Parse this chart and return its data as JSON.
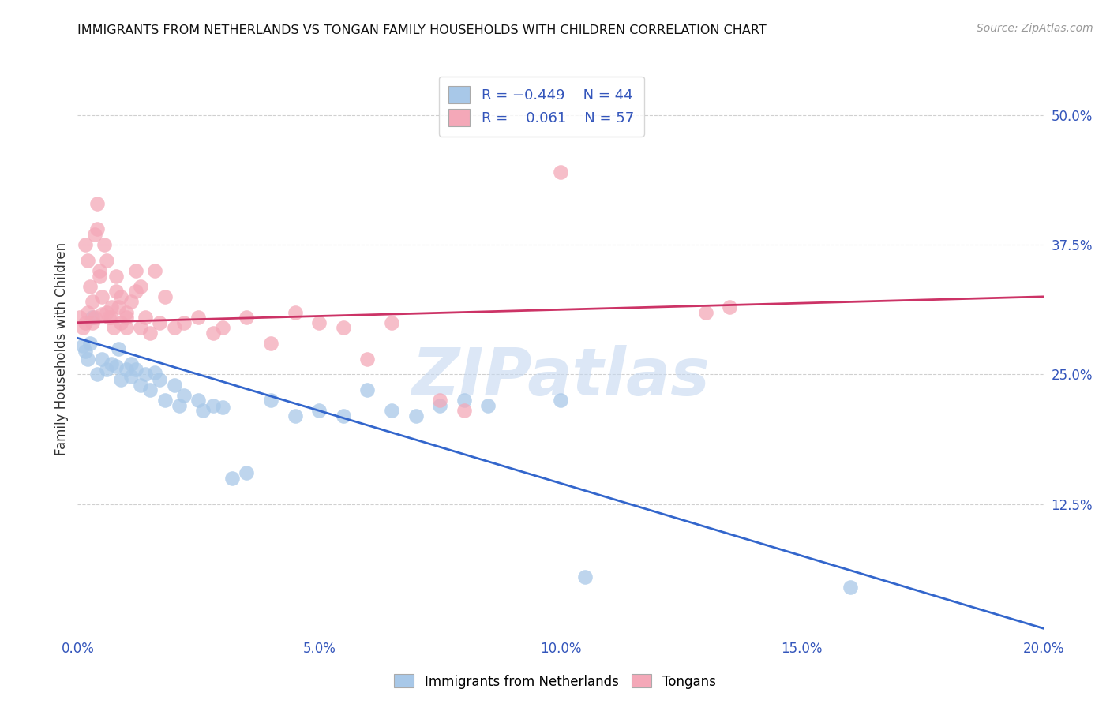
{
  "title": "IMMIGRANTS FROM NETHERLANDS VS TONGAN FAMILY HOUSEHOLDS WITH CHILDREN CORRELATION CHART",
  "source": "Source: ZipAtlas.com",
  "ylabel": "Family Households with Children",
  "x_tick_labels": [
    "0.0%",
    "5.0%",
    "10.0%",
    "15.0%",
    "20.0%"
  ],
  "x_tick_positions": [
    0.0,
    5.0,
    10.0,
    15.0,
    20.0
  ],
  "y_tick_labels": [
    "12.5%",
    "25.0%",
    "37.5%",
    "50.0%"
  ],
  "y_tick_positions": [
    12.5,
    25.0,
    37.5,
    50.0
  ],
  "xlim": [
    0.0,
    20.0
  ],
  "ylim": [
    0.0,
    55.0
  ],
  "blue_color": "#a8c8e8",
  "pink_color": "#f4a8b8",
  "blue_line_color": "#3366cc",
  "pink_line_color": "#cc3366",
  "blue_line_x0": 0.0,
  "blue_line_y0": 28.5,
  "blue_line_x1": 20.0,
  "blue_line_y1": 0.5,
  "pink_line_x0": 0.0,
  "pink_line_y0": 30.0,
  "pink_line_x1": 20.0,
  "pink_line_y1": 32.5,
  "blue_scatter": [
    [
      0.1,
      27.8
    ],
    [
      0.15,
      27.2
    ],
    [
      0.2,
      26.5
    ],
    [
      0.25,
      28.0
    ],
    [
      0.3,
      30.5
    ],
    [
      0.4,
      25.0
    ],
    [
      0.5,
      26.5
    ],
    [
      0.6,
      25.5
    ],
    [
      0.7,
      26.0
    ],
    [
      0.8,
      25.8
    ],
    [
      0.85,
      27.5
    ],
    [
      0.9,
      24.5
    ],
    [
      1.0,
      25.5
    ],
    [
      1.1,
      26.0
    ],
    [
      1.1,
      24.8
    ],
    [
      1.2,
      25.5
    ],
    [
      1.3,
      24.0
    ],
    [
      1.4,
      25.0
    ],
    [
      1.5,
      23.5
    ],
    [
      1.6,
      25.2
    ],
    [
      1.7,
      24.5
    ],
    [
      1.8,
      22.5
    ],
    [
      2.0,
      24.0
    ],
    [
      2.1,
      22.0
    ],
    [
      2.2,
      23.0
    ],
    [
      2.5,
      22.5
    ],
    [
      2.6,
      21.5
    ],
    [
      2.8,
      22.0
    ],
    [
      3.0,
      21.8
    ],
    [
      3.2,
      15.0
    ],
    [
      3.5,
      15.5
    ],
    [
      4.0,
      22.5
    ],
    [
      4.5,
      21.0
    ],
    [
      5.0,
      21.5
    ],
    [
      5.5,
      21.0
    ],
    [
      6.0,
      23.5
    ],
    [
      6.5,
      21.5
    ],
    [
      7.0,
      21.0
    ],
    [
      7.5,
      22.0
    ],
    [
      8.0,
      22.5
    ],
    [
      8.5,
      22.0
    ],
    [
      10.0,
      22.5
    ],
    [
      10.5,
      5.5
    ],
    [
      16.0,
      4.5
    ]
  ],
  "pink_scatter": [
    [
      0.05,
      30.5
    ],
    [
      0.1,
      29.5
    ],
    [
      0.15,
      30.0
    ],
    [
      0.15,
      37.5
    ],
    [
      0.2,
      36.0
    ],
    [
      0.2,
      31.0
    ],
    [
      0.25,
      33.5
    ],
    [
      0.3,
      32.0
    ],
    [
      0.3,
      30.0
    ],
    [
      0.35,
      30.5
    ],
    [
      0.35,
      38.5
    ],
    [
      0.4,
      41.5
    ],
    [
      0.4,
      39.0
    ],
    [
      0.45,
      35.0
    ],
    [
      0.45,
      34.5
    ],
    [
      0.5,
      30.8
    ],
    [
      0.5,
      32.5
    ],
    [
      0.55,
      37.5
    ],
    [
      0.6,
      36.0
    ],
    [
      0.6,
      31.0
    ],
    [
      0.65,
      30.5
    ],
    [
      0.7,
      31.5
    ],
    [
      0.7,
      30.5
    ],
    [
      0.75,
      29.5
    ],
    [
      0.8,
      34.5
    ],
    [
      0.8,
      33.0
    ],
    [
      0.85,
      31.5
    ],
    [
      0.9,
      32.5
    ],
    [
      0.9,
      30.0
    ],
    [
      1.0,
      30.5
    ],
    [
      1.0,
      29.5
    ],
    [
      1.0,
      31.0
    ],
    [
      1.1,
      32.0
    ],
    [
      1.2,
      35.0
    ],
    [
      1.2,
      33.0
    ],
    [
      1.3,
      33.5
    ],
    [
      1.3,
      29.5
    ],
    [
      1.4,
      30.5
    ],
    [
      1.5,
      29.0
    ],
    [
      1.6,
      35.0
    ],
    [
      1.7,
      30.0
    ],
    [
      1.8,
      32.5
    ],
    [
      2.0,
      29.5
    ],
    [
      2.2,
      30.0
    ],
    [
      2.5,
      30.5
    ],
    [
      2.8,
      29.0
    ],
    [
      3.0,
      29.5
    ],
    [
      3.5,
      30.5
    ],
    [
      4.0,
      28.0
    ],
    [
      4.5,
      31.0
    ],
    [
      5.0,
      30.0
    ],
    [
      5.5,
      29.5
    ],
    [
      6.0,
      26.5
    ],
    [
      6.5,
      30.0
    ],
    [
      7.5,
      22.5
    ],
    [
      8.0,
      21.5
    ],
    [
      10.0,
      44.5
    ],
    [
      13.0,
      31.0
    ],
    [
      13.5,
      31.5
    ]
  ],
  "watermark_text": "ZIPatlas",
  "watermark_color": "#c5d8f0",
  "background_color": "#ffffff",
  "grid_color": "#d0d0d0",
  "tick_color": "#3355bb",
  "title_color": "#111111",
  "ylabel_color": "#333333"
}
